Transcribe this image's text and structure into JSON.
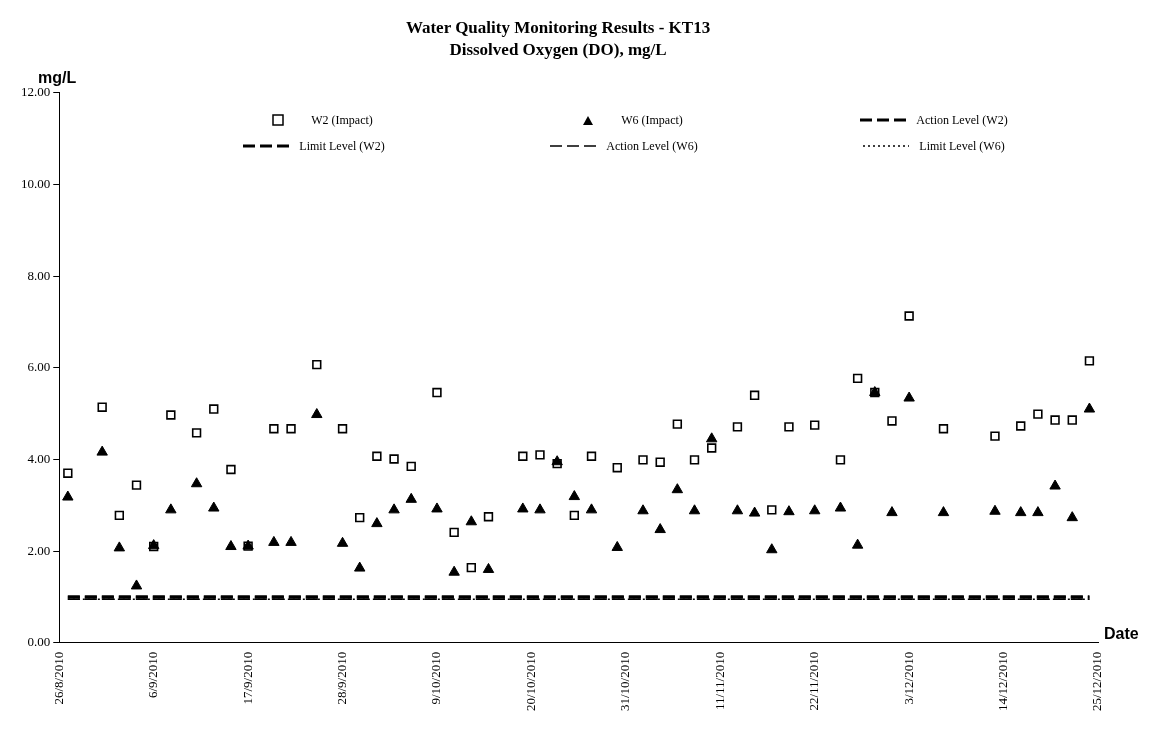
{
  "chart_data": {
    "type": "scatter",
    "title": "Water Quality Monitoring Results - KT13",
    "subtitle": "Dissolved Oxygen (DO), mg/L",
    "xlabel": "Date",
    "ylabel": "mg/L",
    "x": [
      "2010-08-27",
      "2010-08-31",
      "2010-09-02",
      "2010-09-04",
      "2010-09-06",
      "2010-09-08",
      "2010-09-11",
      "2010-09-13",
      "2010-09-15",
      "2010-09-17",
      "2010-09-20",
      "2010-09-22",
      "2010-09-25",
      "2010-09-28",
      "2010-09-30",
      "2010-10-02",
      "2010-10-04",
      "2010-10-06",
      "2010-10-09",
      "2010-10-11",
      "2010-10-13",
      "2010-10-15",
      "2010-10-19",
      "2010-10-21",
      "2010-10-23",
      "2010-10-25",
      "2010-10-27",
      "2010-10-30",
      "2010-11-02",
      "2010-11-04",
      "2010-11-06",
      "2010-11-08",
      "2010-11-10",
      "2010-11-13",
      "2010-11-15",
      "2010-11-17",
      "2010-11-19",
      "2010-11-22",
      "2010-11-25",
      "2010-11-27",
      "2010-11-29",
      "2010-12-01",
      "2010-12-03",
      "2010-12-07",
      "2010-12-13",
      "2010-12-16",
      "2010-12-18",
      "2010-12-20",
      "2010-12-22",
      "2010-12-24"
    ],
    "series": [
      {
        "name": "W2 (Impact)",
        "marker": "square",
        "color": "#000000",
        "values": [
          3.7,
          5.14,
          2.78,
          3.44,
          2.1,
          4.97,
          4.58,
          5.1,
          3.78,
          2.11,
          4.67,
          4.67,
          6.07,
          4.67,
          2.73,
          4.07,
          4.01,
          3.85,
          5.46,
          2.41,
          1.64,
          2.75,
          4.07,
          4.1,
          3.91,
          2.78,
          4.07,
          3.82,
          3.99,
          3.94,
          4.77,
          3.99,
          4.25,
          4.71,
          5.4,
          2.9,
          4.71,
          4.75,
          3.99,
          5.77,
          5.46,
          4.84,
          7.13,
          4.67,
          4.51,
          4.73,
          4.99,
          4.86,
          4.86,
          6.15
        ]
      },
      {
        "name": "W6 (Impact)",
        "marker": "triangle",
        "color": "#000000",
        "values": [
          3.18,
          4.16,
          2.07,
          1.24,
          2.12,
          2.9,
          3.47,
          2.94,
          2.1,
          2.11,
          2.19,
          2.19,
          4.98,
          2.17,
          1.63,
          2.6,
          2.9,
          3.13,
          2.92,
          1.54,
          2.64,
          1.6,
          2.92,
          2.9,
          3.95,
          3.19,
          2.9,
          2.08,
          2.88,
          2.47,
          3.34,
          2.88,
          4.45,
          2.88,
          2.83,
          2.03,
          2.86,
          2.88,
          2.94,
          2.13,
          5.46,
          2.84,
          5.34,
          2.84,
          2.87,
          2.84,
          2.84,
          3.42,
          2.73,
          5.1
        ]
      },
      {
        "name": "Action Level (W2)",
        "type": "line",
        "marker": "none",
        "line_style": "dashed",
        "color": "#000000",
        "x": [
          "2010-08-27",
          "2010-12-24"
        ],
        "values": [
          1.0,
          1.0
        ]
      },
      {
        "name": "Limit Level (W2)",
        "type": "line",
        "marker": "none",
        "line_style": "dashed",
        "color": "#000000",
        "x": [
          "2010-08-27",
          "2010-12-24"
        ],
        "values": [
          1.0,
          1.0
        ]
      },
      {
        "name": "Action Level (W6)",
        "type": "line",
        "marker": "none",
        "line_style": "dashed",
        "color": "#000000",
        "x": [
          "2010-08-27",
          "2010-12-24"
        ],
        "values": [
          0.95,
          0.95
        ]
      },
      {
        "name": "Limit Level (W6)",
        "type": "line",
        "marker": "none",
        "line_style": "dotted",
        "color": "#000000",
        "x": [
          "2010-08-27",
          "2010-12-24"
        ],
        "values": [
          0.95,
          0.95
        ]
      }
    ],
    "xlim": [
      "2010-08-26",
      "2010-12-25"
    ],
    "xticks": [
      {
        "value": "2010-08-26",
        "label": "26/8/2010"
      },
      {
        "value": "2010-09-06",
        "label": "6/9/2010"
      },
      {
        "value": "2010-09-17",
        "label": "17/9/2010"
      },
      {
        "value": "2010-09-28",
        "label": "28/9/2010"
      },
      {
        "value": "2010-10-09",
        "label": "9/10/2010"
      },
      {
        "value": "2010-10-20",
        "label": "20/10/2010"
      },
      {
        "value": "2010-10-31",
        "label": "31/10/2010"
      },
      {
        "value": "2010-11-11",
        "label": "11/11/2010"
      },
      {
        "value": "2010-11-22",
        "label": "22/11/2010"
      },
      {
        "value": "2010-12-03",
        "label": "3/12/2010"
      },
      {
        "value": "2010-12-14",
        "label": "14/12/2010"
      },
      {
        "value": "2010-12-25",
        "label": "25/12/2010"
      }
    ],
    "ylim": [
      0,
      12
    ],
    "yticks": [
      {
        "value": 0,
        "label": "0.00"
      },
      {
        "value": 2,
        "label": "2.00"
      },
      {
        "value": 4,
        "label": "4.00"
      },
      {
        "value": 6,
        "label": "6.00"
      },
      {
        "value": 8,
        "label": "8.00"
      },
      {
        "value": 10,
        "label": "10.00"
      },
      {
        "value": 12,
        "label": "12.00"
      }
    ],
    "grid": false,
    "legend": "top"
  }
}
